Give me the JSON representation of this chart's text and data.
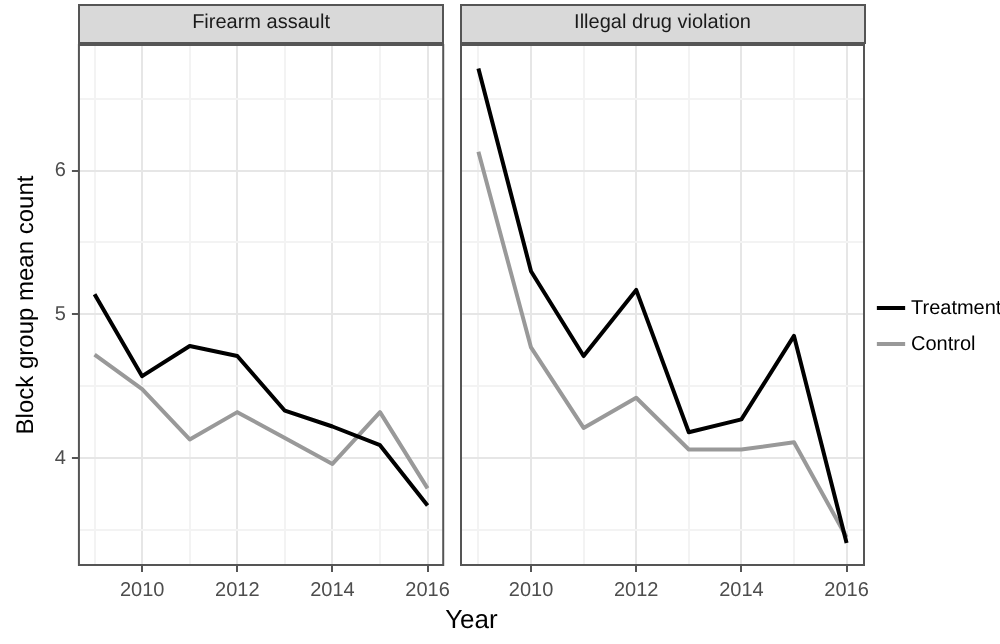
{
  "chart_data": [
    {
      "type": "line",
      "title": "Firearm assault",
      "xlabel": "Year",
      "ylabel": "Block group mean count",
      "x": [
        2009,
        2010,
        2011,
        2012,
        2013,
        2014,
        2015,
        2016
      ],
      "series": [
        {
          "color": "#000000",
          "values": [
            5.14,
            4.57,
            4.78,
            4.71,
            4.33,
            4.22,
            4.09,
            3.67
          ]
        },
        {
          "color": "#999999",
          "values": [
            4.72,
            4.48,
            4.13,
            4.32,
            4.14,
            3.96,
            4.32,
            3.79
          ]
        }
      ],
      "xlim": [
        2008.65,
        2016.35
      ],
      "xticks": [
        {
          "value": 2009,
          "label": null
        },
        2010,
        {
          "value": 2011,
          "label": null
        },
        2012,
        {
          "value": 2013,
          "label": null
        },
        2014,
        {
          "value": 2015,
          "label": null
        },
        2016
      ],
      "ylim": [
        3.25,
        6.88
      ],
      "yticks": [
        {
          "value": 3.5,
          "label": null
        },
        4,
        {
          "value": 4.5,
          "label": null
        },
        5,
        {
          "value": 5.5,
          "label": null
        },
        6,
        {
          "value": 6.5,
          "label": null
        }
      ],
      "grid": true,
      "legend": false
    },
    {
      "type": "line",
      "title": "Illegal drug violation",
      "x": [
        2009,
        2010,
        2011,
        2012,
        2013,
        2014,
        2015,
        2016
      ],
      "series": [
        {
          "name": "Treatment",
          "color": "#000000",
          "values": [
            6.71,
            5.3,
            4.71,
            5.17,
            4.18,
            4.27,
            4.85,
            3.41
          ]
        },
        {
          "name": "Control",
          "color": "#999999",
          "values": [
            6.13,
            4.77,
            4.21,
            4.42,
            4.06,
            4.06,
            4.11,
            3.45
          ]
        }
      ],
      "xlim": [
        2008.65,
        2016.35
      ],
      "xticks": [
        {
          "value": 2009,
          "label": null
        },
        2010,
        {
          "value": 2011,
          "label": null
        },
        2012,
        {
          "value": 2013,
          "label": null
        },
        2014,
        {
          "value": 2015,
          "label": null
        },
        2016
      ],
      "ylim": [
        3.25,
        6.88
      ],
      "yticks": [
        {
          "value": 3.5,
          "label": null
        },
        4,
        {
          "value": 4.5,
          "label": null
        },
        5,
        {
          "value": 5.5,
          "label": null
        },
        6,
        {
          "value": 6.5,
          "label": null
        }
      ],
      "grid": true,
      "legend": "right",
      "tick_labels": "x"
    }
  ]
}
